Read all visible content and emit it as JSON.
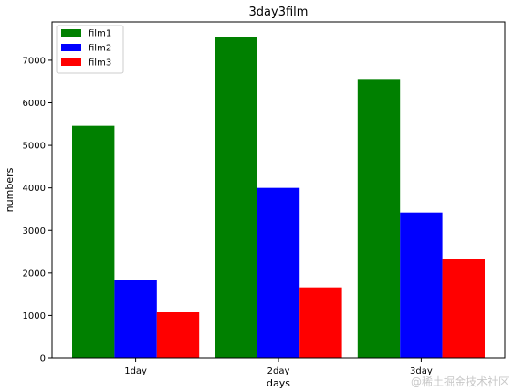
{
  "chart_data": {
    "type": "bar",
    "title": "3day3film",
    "xlabel": "days",
    "ylabel": "numbers",
    "categories": [
      "1day",
      "2day",
      "3day"
    ],
    "series": [
      {
        "name": "film1",
        "color": "#008000",
        "values": [
          5460,
          7540,
          6540
        ]
      },
      {
        "name": "film2",
        "color": "#0000ff",
        "values": [
          1840,
          4000,
          3420
        ]
      },
      {
        "name": "film3",
        "color": "#ff0000",
        "values": [
          1090,
          1660,
          2330
        ]
      }
    ],
    "ylim": [
      0,
      7900
    ],
    "yticks": [
      0,
      1000,
      2000,
      3000,
      4000,
      5000,
      6000,
      7000
    ],
    "grid": false,
    "legend": "top-left"
  },
  "watermark": "@稀土掘金技术社区"
}
